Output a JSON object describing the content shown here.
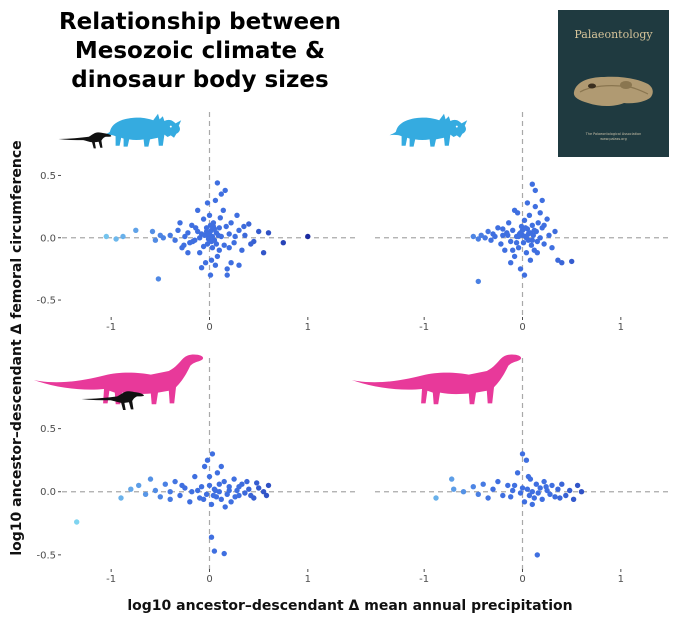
{
  "title_lines": [
    "Relationship between",
    "Mesozoic climate &",
    "dinosaur body sizes"
  ],
  "journal_cover": {
    "title": "Palaeontology",
    "small_lines": [
      "The Palaeontological Association",
      "www.palass.org"
    ],
    "colors": {
      "background": "#1f3a40",
      "title": "#d6c49a",
      "skull": "#b09a72"
    }
  },
  "y_axis_label": "log10 ancestor–descendant Δ femoral circumference",
  "x_axis_label": "log10 ancestor–descendant Δ mean annual precipitation",
  "silhouette_icons": {
    "ceratopsian_color": "#35abe0",
    "sauropod_color": "#e8399a",
    "small_dinosaur_color": "#111111"
  },
  "colors": {
    "low": "#7fd4f0",
    "mid": "#3f6fe0",
    "high": "#1a2aa0",
    "refline": "#a9a9a9",
    "tick_text": "#4d4d4d"
  },
  "chart_data": [
    {
      "type": "scatter",
      "panel": "top-left",
      "icons": [
        "small-dinosaur-silhouette",
        "ceratopsian-silhouette"
      ],
      "xlim": [
        -1.5,
        1.5
      ],
      "ylim": [
        -0.62,
        0.6
      ],
      "x_ticks": [
        -1,
        0,
        1
      ],
      "y_ticks": [
        -0.5,
        0.0,
        0.5
      ],
      "x_tick_labels": [
        "-1",
        "0",
        "1"
      ],
      "y_tick_labels": [
        "-0.5",
        "0.0",
        "0.5"
      ],
      "reference_lines": {
        "x": 0,
        "y": 0
      },
      "points": [
        [
          -1.05,
          0.01
        ],
        [
          -0.95,
          -0.01
        ],
        [
          -0.88,
          0.01
        ],
        [
          -0.75,
          0.06
        ],
        [
          -0.58,
          0.05
        ],
        [
          -0.55,
          -0.02
        ],
        [
          -0.5,
          0.02
        ],
        [
          -0.47,
          0.0
        ],
        [
          -0.52,
          -0.33
        ],
        [
          -0.4,
          0.02
        ],
        [
          -0.35,
          -0.02
        ],
        [
          -0.32,
          0.06
        ],
        [
          -0.28,
          -0.08
        ],
        [
          -0.25,
          0.01
        ],
        [
          -0.22,
          0.04
        ],
        [
          -0.2,
          -0.04
        ],
        [
          -0.18,
          0.1
        ],
        [
          -0.15,
          -0.02
        ],
        [
          -0.12,
          0.05
        ],
        [
          -0.1,
          -0.12
        ],
        [
          -0.08,
          0.03
        ],
        [
          -0.06,
          0.15
        ],
        [
          -0.04,
          -0.2
        ],
        [
          -0.03,
          0.08
        ],
        [
          -0.02,
          -0.05
        ],
        [
          -0.01,
          0.02
        ],
        [
          0.0,
          0.18
        ],
        [
          0.01,
          -0.3
        ],
        [
          0.02,
          0.06
        ],
        [
          0.03,
          -0.08
        ],
        [
          0.04,
          0.12
        ],
        [
          0.05,
          -0.02
        ],
        [
          0.06,
          0.3
        ],
        [
          0.07,
          0.04
        ],
        [
          0.08,
          -0.15
        ],
        [
          0.1,
          0.08
        ],
        [
          0.12,
          0.01
        ],
        [
          0.14,
          0.22
        ],
        [
          0.15,
          -0.06
        ],
        [
          0.17,
          0.09
        ],
        [
          0.18,
          -0.25
        ],
        [
          0.2,
          0.03
        ],
        [
          0.22,
          0.12
        ],
        [
          0.25,
          -0.04
        ],
        [
          0.28,
          0.18
        ],
        [
          0.3,
          0.06
        ],
        [
          0.33,
          -0.1
        ],
        [
          0.36,
          0.02
        ],
        [
          0.4,
          0.11
        ],
        [
          0.45,
          -0.03
        ],
        [
          0.5,
          0.05
        ],
        [
          0.55,
          -0.12
        ],
        [
          0.6,
          0.04
        ],
        [
          0.75,
          -0.04
        ],
        [
          1.0,
          0.01
        ],
        [
          0.08,
          0.44
        ],
        [
          0.12,
          0.35
        ],
        [
          -0.05,
          0.02
        ],
        [
          -0.02,
          0.28
        ],
        [
          0.02,
          -0.18
        ],
        [
          0.06,
          -0.22
        ],
        [
          0.1,
          -0.1
        ],
        [
          -0.1,
          0.0
        ],
        [
          -0.14,
          0.08
        ],
        [
          0.05,
          0.07
        ],
        [
          0.03,
          0.01
        ],
        [
          -0.01,
          -0.01
        ],
        [
          0.0,
          0.03
        ],
        [
          0.02,
          -0.03
        ],
        [
          -0.03,
          0.05
        ],
        [
          0.04,
          0.09
        ],
        [
          -0.06,
          -0.07
        ],
        [
          0.09,
          0.02
        ],
        [
          0.18,
          -0.3
        ],
        [
          0.22,
          -0.2
        ],
        [
          0.3,
          -0.22
        ],
        [
          -0.22,
          -0.12
        ],
        [
          -0.3,
          0.12
        ],
        [
          -0.08,
          -0.24
        ],
        [
          0.11,
          0.16
        ],
        [
          0.16,
          0.38
        ],
        [
          -0.12,
          0.22
        ],
        [
          0.35,
          0.09
        ],
        [
          0.42,
          -0.05
        ],
        [
          0.26,
          0.01
        ],
        [
          0.2,
          -0.08
        ],
        [
          -0.17,
          -0.03
        ],
        [
          -0.26,
          -0.06
        ],
        [
          0.07,
          -0.05
        ],
        [
          0.01,
          0.1
        ]
      ]
    },
    {
      "type": "scatter",
      "panel": "top-right",
      "icons": [
        "ceratopsian-silhouette"
      ],
      "xlim": [
        -1.5,
        1.5
      ],
      "ylim": [
        -0.62,
        0.6
      ],
      "x_ticks": [
        -1,
        0,
        1
      ],
      "y_ticks": [
        -0.5,
        0.0,
        0.5
      ],
      "x_tick_labels": [
        "-1",
        "0",
        "1"
      ],
      "y_tick_labels": [
        "-0.5",
        "0.0",
        "0.5"
      ],
      "reference_lines": {
        "x": 0,
        "y": 0
      },
      "points": [
        [
          -0.5,
          0.01
        ],
        [
          -0.45,
          -0.01
        ],
        [
          -0.42,
          0.02
        ],
        [
          -0.38,
          0.0
        ],
        [
          -0.35,
          0.05
        ],
        [
          -0.32,
          -0.02
        ],
        [
          -0.3,
          0.03
        ],
        [
          -0.45,
          -0.35
        ],
        [
          -0.28,
          0.01
        ],
        [
          -0.25,
          0.08
        ],
        [
          -0.22,
          -0.05
        ],
        [
          -0.2,
          0.02
        ],
        [
          -0.18,
          -0.1
        ],
        [
          -0.16,
          0.04
        ],
        [
          -0.14,
          0.12
        ],
        [
          -0.12,
          -0.03
        ],
        [
          -0.1,
          0.06
        ],
        [
          -0.08,
          -0.15
        ],
        [
          -0.06,
          0.01
        ],
        [
          -0.05,
          0.2
        ],
        [
          -0.04,
          -0.08
        ],
        [
          -0.03,
          0.03
        ],
        [
          -0.02,
          -0.25
        ],
        [
          -0.01,
          0.09
        ],
        [
          0.0,
          0.02
        ],
        [
          0.01,
          -0.04
        ],
        [
          0.02,
          0.14
        ],
        [
          0.03,
          0.01
        ],
        [
          0.04,
          -0.12
        ],
        [
          0.05,
          0.07
        ],
        [
          0.06,
          -0.02
        ],
        [
          0.07,
          0.18
        ],
        [
          0.08,
          0.04
        ],
        [
          0.09,
          -0.06
        ],
        [
          0.1,
          0.1
        ],
        [
          0.11,
          0.02
        ],
        [
          0.12,
          -0.1
        ],
        [
          0.13,
          0.25
        ],
        [
          0.14,
          0.05
        ],
        [
          0.15,
          -0.03
        ],
        [
          0.16,
          0.12
        ],
        [
          0.18,
          0.0
        ],
        [
          0.2,
          0.08
        ],
        [
          0.22,
          -0.05
        ],
        [
          0.25,
          0.15
        ],
        [
          0.27,
          0.02
        ],
        [
          0.3,
          -0.08
        ],
        [
          0.33,
          0.05
        ],
        [
          0.36,
          -0.18
        ],
        [
          0.4,
          -0.2
        ],
        [
          0.5,
          -0.19
        ],
        [
          0.1,
          0.43
        ],
        [
          0.13,
          0.38
        ],
        [
          0.2,
          0.3
        ],
        [
          0.05,
          0.28
        ],
        [
          -0.08,
          0.22
        ],
        [
          -0.12,
          -0.2
        ],
        [
          0.02,
          -0.3
        ],
        [
          -0.06,
          -0.04
        ],
        [
          0.08,
          -0.18
        ],
        [
          0.0,
          0.06
        ],
        [
          -0.02,
          0.04
        ],
        [
          0.04,
          0.0
        ],
        [
          0.06,
          0.03
        ],
        [
          -0.04,
          0.01
        ],
        [
          0.1,
          -0.02
        ],
        [
          0.12,
          0.06
        ],
        [
          -0.15,
          0.02
        ],
        [
          0.18,
          0.2
        ],
        [
          0.22,
          0.1
        ],
        [
          -0.1,
          -0.1
        ],
        [
          0.03,
          0.08
        ],
        [
          0.15,
          -0.12
        ],
        [
          -0.2,
          0.07
        ]
      ]
    },
    {
      "type": "scatter",
      "panel": "bottom-left",
      "icons": [
        "sauropod-silhouette",
        "small-dinosaur-silhouette"
      ],
      "xlim": [
        -1.5,
        1.5
      ],
      "ylim": [
        -0.62,
        0.6
      ],
      "x_ticks": [
        -1,
        0,
        1
      ],
      "y_ticks": [
        -0.5,
        0.0,
        0.5
      ],
      "x_tick_labels": [
        "-1",
        "0",
        "1"
      ],
      "y_tick_labels": [
        "-0.5",
        "0.0",
        "0.5"
      ],
      "reference_lines": {
        "x": 0,
        "y": 0
      },
      "points": [
        [
          -1.35,
          -0.24
        ],
        [
          -0.9,
          -0.05
        ],
        [
          -0.8,
          0.02
        ],
        [
          -0.72,
          0.05
        ],
        [
          -0.65,
          -0.02
        ],
        [
          -0.6,
          0.1
        ],
        [
          -0.55,
          0.01
        ],
        [
          -0.5,
          -0.04
        ],
        [
          -0.45,
          0.06
        ],
        [
          -0.4,
          0.0
        ],
        [
          -0.35,
          0.08
        ],
        [
          -0.3,
          -0.03
        ],
        [
          -0.25,
          0.03
        ],
        [
          -0.2,
          -0.08
        ],
        [
          -0.15,
          0.12
        ],
        [
          -0.12,
          0.01
        ],
        [
          -0.1,
          -0.05
        ],
        [
          -0.05,
          0.2
        ],
        [
          -0.03,
          -0.02
        ],
        [
          0.0,
          0.05
        ],
        [
          0.02,
          -0.1
        ],
        [
          0.03,
          0.3
        ],
        [
          0.05,
          0.02
        ],
        [
          0.07,
          -0.04
        ],
        [
          0.08,
          0.15
        ],
        [
          0.1,
          0.0
        ],
        [
          0.12,
          -0.06
        ],
        [
          0.15,
          0.08
        ],
        [
          0.18,
          -0.02
        ],
        [
          0.2,
          0.04
        ],
        [
          0.22,
          -0.08
        ],
        [
          0.25,
          0.1
        ],
        [
          0.28,
          0.01
        ],
        [
          0.3,
          -0.03
        ],
        [
          0.33,
          0.06
        ],
        [
          0.36,
          -0.01
        ],
        [
          0.4,
          0.02
        ],
        [
          0.45,
          -0.05
        ],
        [
          0.5,
          0.03
        ],
        [
          0.55,
          0.0
        ],
        [
          0.6,
          0.05
        ],
        [
          0.02,
          -0.36
        ],
        [
          0.05,
          -0.47
        ],
        [
          0.15,
          -0.49
        ],
        [
          -0.02,
          0.25
        ],
        [
          0.0,
          0.12
        ],
        [
          0.04,
          -0.03
        ],
        [
          -0.08,
          0.04
        ],
        [
          0.1,
          0.06
        ],
        [
          0.12,
          0.2
        ],
        [
          0.16,
          -0.12
        ],
        [
          -0.18,
          0.0
        ],
        [
          -0.28,
          0.05
        ],
        [
          0.26,
          -0.04
        ],
        [
          0.38,
          0.08
        ],
        [
          0.42,
          -0.03
        ],
        [
          0.06,
          0.01
        ],
        [
          -0.06,
          -0.06
        ],
        [
          0.2,
          0.01
        ],
        [
          0.3,
          0.04
        ],
        [
          -0.4,
          -0.06
        ],
        [
          0.48,
          0.07
        ],
        [
          0.58,
          -0.03
        ]
      ]
    },
    {
      "type": "scatter",
      "panel": "bottom-right",
      "icons": [
        "sauropod-silhouette"
      ],
      "xlim": [
        -1.5,
        1.5
      ],
      "ylim": [
        -0.62,
        0.6
      ],
      "x_ticks": [
        -1,
        0,
        1
      ],
      "y_ticks": [
        -0.5,
        0.0,
        0.5
      ],
      "x_tick_labels": [
        "-1",
        "0",
        "1"
      ],
      "y_tick_labels": [
        "-0.5",
        "0.0",
        "0.5"
      ],
      "reference_lines": {
        "x": 0,
        "y": 0
      },
      "points": [
        [
          -0.88,
          -0.05
        ],
        [
          -0.72,
          0.1
        ],
        [
          -0.7,
          0.02
        ],
        [
          -0.6,
          0.0
        ],
        [
          -0.5,
          0.04
        ],
        [
          -0.45,
          -0.02
        ],
        [
          -0.4,
          0.06
        ],
        [
          -0.35,
          -0.05
        ],
        [
          -0.3,
          0.02
        ],
        [
          -0.25,
          0.08
        ],
        [
          -0.2,
          -0.03
        ],
        [
          -0.15,
          0.05
        ],
        [
          -0.1,
          0.01
        ],
        [
          -0.05,
          0.15
        ],
        [
          -0.02,
          -0.01
        ],
        [
          0.0,
          0.03
        ],
        [
          0.02,
          -0.08
        ],
        [
          0.04,
          0.25
        ],
        [
          0.05,
          0.02
        ],
        [
          0.07,
          -0.03
        ],
        [
          0.08,
          0.1
        ],
        [
          0.1,
          0.0
        ],
        [
          0.12,
          -0.05
        ],
        [
          0.14,
          0.06
        ],
        [
          0.16,
          -0.01
        ],
        [
          0.18,
          0.03
        ],
        [
          0.2,
          -0.06
        ],
        [
          0.22,
          0.08
        ],
        [
          0.25,
          0.01
        ],
        [
          0.28,
          -0.02
        ],
        [
          0.3,
          0.05
        ],
        [
          0.33,
          -0.04
        ],
        [
          0.36,
          0.02
        ],
        [
          0.4,
          0.06
        ],
        [
          0.44,
          -0.03
        ],
        [
          0.48,
          0.01
        ],
        [
          0.52,
          -0.06
        ],
        [
          0.56,
          0.05
        ],
        [
          0.6,
          0.0
        ],
        [
          0.0,
          0.3
        ],
        [
          0.15,
          -0.5
        ],
        [
          -0.08,
          0.05
        ],
        [
          0.06,
          0.12
        ],
        [
          0.1,
          -0.1
        ],
        [
          -0.12,
          -0.04
        ],
        [
          0.24,
          0.04
        ],
        [
          0.38,
          -0.05
        ]
      ]
    }
  ]
}
